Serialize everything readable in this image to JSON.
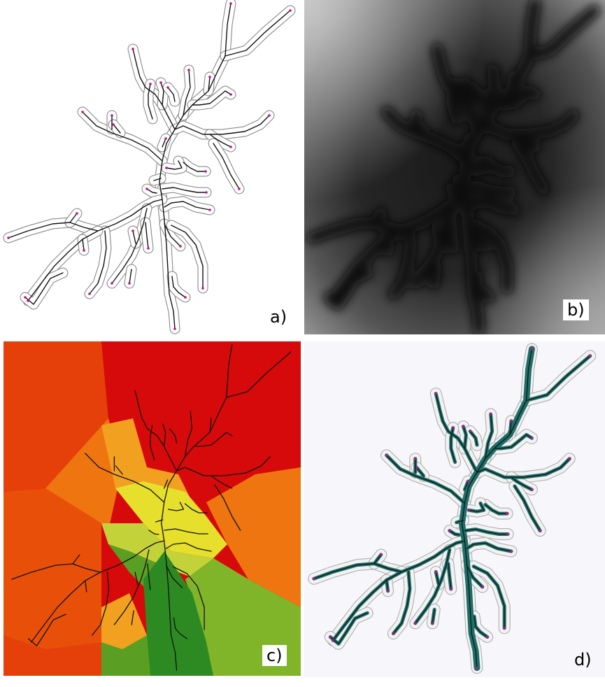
{
  "panels": [
    {
      "id": "a",
      "label": "a)",
      "style": "outline-skeleton",
      "background": "#ffffff"
    },
    {
      "id": "b",
      "label": "b)",
      "style": "distance-field",
      "background": "#2a2a2a"
    },
    {
      "id": "c",
      "label": "c)",
      "style": "height-map",
      "background": "#d80a0a"
    },
    {
      "id": "d",
      "label": "d)",
      "style": "thick-skeleton",
      "background": "#f6f6fb"
    }
  ],
  "colors": {
    "skeleton": "#111111",
    "endpoint": "#c0108a",
    "outline": "#b9b9b9",
    "thick_fill": "#1f6e68",
    "red": "#d60a0a",
    "orange_red": "#e6400a",
    "orange": "#ee7510",
    "yellow_orange": "#f2a020",
    "yellow": "#e6df2c",
    "yellow_green": "#c4d23a",
    "green_light": "#80b52a",
    "green_mid": "#5a9f24",
    "green_dark": "#2d8a22"
  }
}
